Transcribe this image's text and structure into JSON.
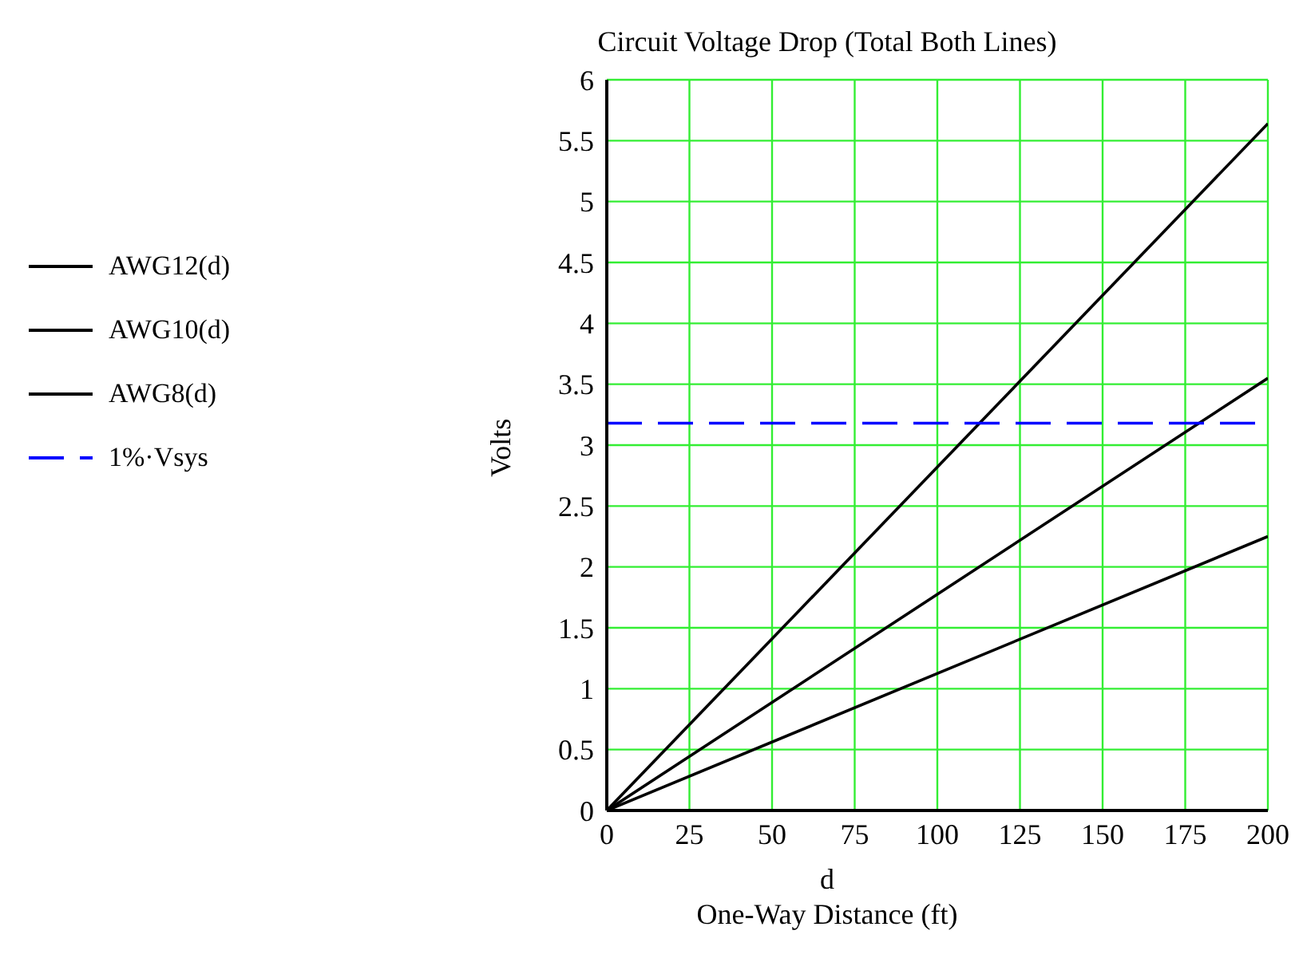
{
  "chart_data": {
    "type": "line",
    "title": "Circuit Voltage Drop (Total Both Lines)",
    "xlabel": "d\nOne-Way Distance (ft)",
    "ylabel": "Volts",
    "x": [
      0,
      200
    ],
    "series": [
      {
        "name": "AWG12(d)",
        "color": "#000000",
        "values": [
          0,
          5.64
        ]
      },
      {
        "name": "AWG10(d)",
        "color": "#000000",
        "values": [
          0,
          3.55
        ]
      },
      {
        "name": "AWG8(d)",
        "color": "#000000",
        "values": [
          0,
          2.25
        ]
      },
      {
        "name": "1%·Vsys",
        "color": "#0000ff",
        "values": [
          3.18,
          3.18
        ],
        "line_style": "dashed"
      }
    ],
    "xlim": [
      0,
      200
    ],
    "xticks": [
      0,
      25,
      50,
      75,
      100,
      125,
      150,
      175,
      200
    ],
    "ylim": [
      0,
      6
    ],
    "yticks": [
      0,
      0.5,
      1,
      1.5,
      2,
      2.5,
      3,
      3.5,
      4,
      4.5,
      5,
      5.5,
      6
    ],
    "grid": true,
    "legend": "left",
    "marker": "none",
    "line_style": "solid"
  }
}
